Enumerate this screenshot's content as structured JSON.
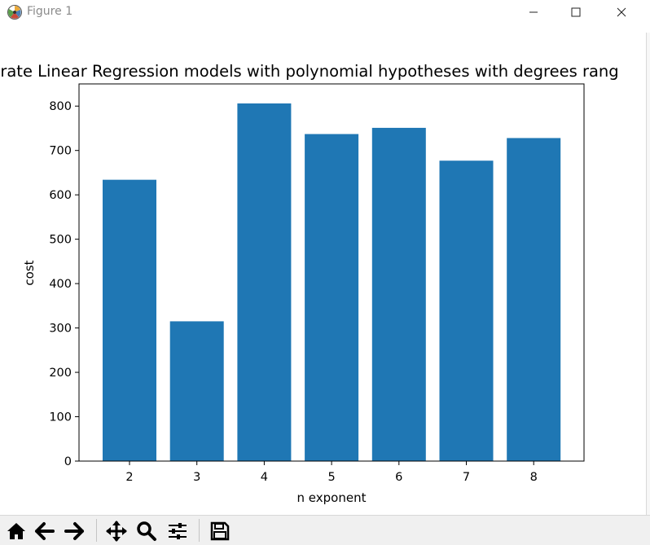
{
  "window": {
    "title": "Figure 1"
  },
  "toolbar": {
    "icons": [
      "home-icon",
      "back-arrow-icon",
      "forward-arrow-icon",
      "pan-icon",
      "zoom-icon",
      "configure-subplots-icon",
      "save-icon"
    ]
  },
  "chart_data": {
    "type": "bar",
    "title": "rate Linear Regression models with polynomial hypotheses with degrees rang",
    "xlabel": "n exponent",
    "ylabel": "cost",
    "categories": [
      "2",
      "3",
      "4",
      "5",
      "6",
      "7",
      "8"
    ],
    "values": [
      634,
      315,
      806,
      737,
      751,
      677,
      728
    ],
    "ylim": [
      0,
      850
    ],
    "yticks": [
      0,
      100,
      200,
      300,
      400,
      500,
      600,
      700,
      800
    ],
    "grid": false,
    "legend": "none",
    "bar_color": "#1f77b4"
  }
}
